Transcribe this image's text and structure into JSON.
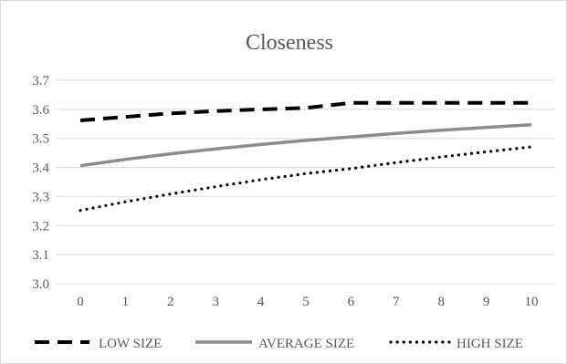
{
  "chart_data": {
    "type": "line",
    "title": "Closeness",
    "xlabel": "",
    "ylabel": "",
    "x": [
      0,
      1,
      2,
      3,
      4,
      5,
      6,
      7,
      8,
      9,
      10
    ],
    "xlim": [
      0,
      10
    ],
    "ylim": [
      3.0,
      3.7
    ],
    "yticks": [
      "3.0",
      "3.1",
      "3.2",
      "3.3",
      "3.4",
      "3.5",
      "3.6",
      "3.7"
    ],
    "xticks": [
      "0",
      "1",
      "2",
      "3",
      "4",
      "5",
      "6",
      "7",
      "8",
      "9",
      "10"
    ],
    "grid": "horizontal",
    "legend_position": "bottom",
    "series": [
      {
        "name": "LOW SIZE",
        "style": "dashed",
        "color": "#000000",
        "values": [
          3.562,
          3.574,
          3.586,
          3.594,
          3.6,
          3.605,
          3.622,
          3.622,
          3.622,
          3.622,
          3.622
        ]
      },
      {
        "name": "AVERAGE SIZE",
        "style": "solid",
        "color": "#8c8c8c",
        "values": [
          3.406,
          3.428,
          3.447,
          3.464,
          3.479,
          3.493,
          3.505,
          3.517,
          3.528,
          3.538,
          3.547
        ]
      },
      {
        "name": "HIGH SIZE",
        "style": "dotted",
        "color": "#000000",
        "values": [
          3.252,
          3.282,
          3.309,
          3.334,
          3.358,
          3.379,
          3.396,
          3.417,
          3.436,
          3.454,
          3.471
        ]
      }
    ]
  }
}
